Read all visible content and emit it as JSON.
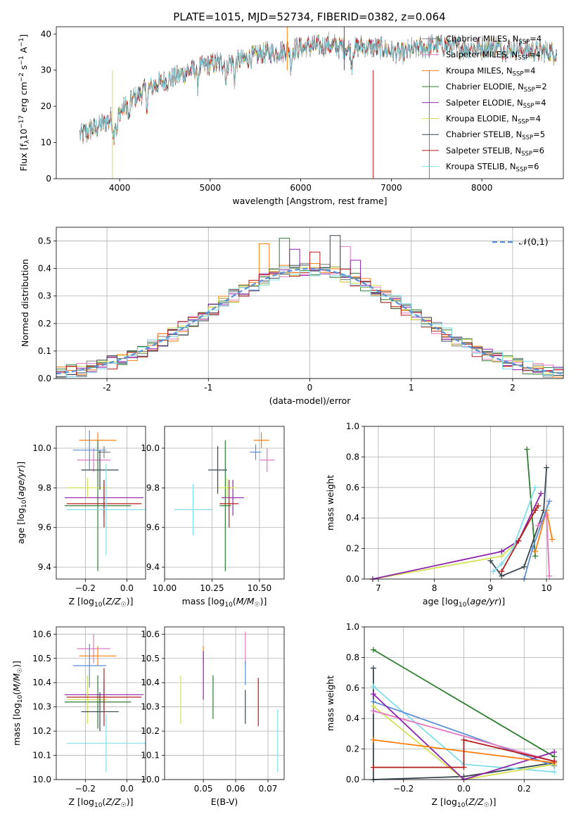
{
  "figure": {
    "title": "PLATE=1015, MJD=52734, FIBERID=0382, z=0.064"
  },
  "model_colors": [
    "#7f7f7f",
    "#e377c2",
    "#ff7f0e",
    "#2e7d32",
    "#8e24aa",
    "#d4e157",
    "#37474f",
    "#b71c1c",
    "#80deea"
  ],
  "legend": [
    {
      "prefix": "Chabrier MILES, N",
      "sub": "SSP",
      "suffix": "=4"
    },
    {
      "prefix": "Salpeter MILES, N",
      "sub": "SSP",
      "suffix": "=4"
    },
    {
      "prefix": "Kroupa MILES, N",
      "sub": "SSP",
      "suffix": "=4"
    },
    {
      "prefix": "Chabrier ELODIE, N",
      "sub": "SSP",
      "suffix": "=2"
    },
    {
      "prefix": "Salpeter ELODIE, N",
      "sub": "SSP",
      "suffix": "=4"
    },
    {
      "prefix": "Kroupa ELODIE, N",
      "sub": "SSP",
      "suffix": "=4"
    },
    {
      "prefix": "Chabrier STELIB, N",
      "sub": "SSP",
      "suffix": "=5"
    },
    {
      "prefix": "Salpeter STELIB, N",
      "sub": "SSP",
      "suffix": "=6"
    },
    {
      "prefix": "Kroupa STELIB, N",
      "sub": "SSP",
      "suffix": "=6"
    }
  ],
  "chart_data": [
    {
      "id": "spectrum",
      "type": "line",
      "xlabel": "wavelength [Angstrom, rest frame]",
      "ylabel": "Flux [f_λ10^-17 erg cm^-2 s^-1 A^-1]",
      "xlim": [
        3300,
        8900
      ],
      "ylim": [
        0,
        42
      ],
      "xticks": [
        4000,
        5000,
        6000,
        7000,
        8000
      ],
      "yticks": [
        0,
        10,
        20,
        30,
        40
      ],
      "continuum": {
        "x": [
          3550,
          3650,
          3800,
          3950,
          4100,
          4300,
          4500,
          4700,
          4900,
          5100,
          5300,
          5500,
          5700,
          5900,
          6100,
          6300,
          6500,
          6700,
          6900,
          7100,
          7300,
          7500,
          7700,
          7900,
          8100,
          8300,
          8500,
          8800
        ],
        "y": [
          12,
          13,
          15,
          17,
          21,
          25,
          27,
          29,
          31,
          32,
          32.5,
          34,
          35,
          36,
          36.5,
          37,
          36,
          36.5,
          36,
          34.5,
          36,
          37,
          36.5,
          36,
          36.5,
          36,
          35.5,
          35
        ]
      },
      "absorption_features": [
        3934,
        3969,
        4102,
        4304,
        4861,
        5175,
        5270,
        5893,
        6563
      ],
      "spikes": [
        {
          "x": 3920,
          "y": 0
        },
        {
          "x": 6800,
          "y": 0
        },
        {
          "x": 7420,
          "y": 0
        },
        {
          "x": 5850,
          "y": 42
        },
        {
          "x": 6480,
          "y": 42
        }
      ]
    },
    {
      "id": "residuals",
      "type": "histogram",
      "xlabel": "(data-model)/error",
      "ylabel": "Normed distribution",
      "xlim": [
        -2.5,
        2.5
      ],
      "ylim": [
        0,
        0.55
      ],
      "xticks": [
        -2,
        -1,
        0,
        1,
        2
      ],
      "yticks": [
        0,
        0.1,
        0.2,
        0.3,
        0.4,
        0.5
      ],
      "bins": {
        "start": -2.5,
        "width": 0.1,
        "count": 50
      },
      "reference_curve": {
        "label": "𝒩(0,1)",
        "mu": 0,
        "sigma": 1
      },
      "peak_overrides": [
        {
          "bin": 20,
          "series": 2,
          "value": 0.49
        },
        {
          "bin": 22,
          "series": 3,
          "value": 0.51
        },
        {
          "bin": 27,
          "series": 6,
          "value": 0.52
        },
        {
          "bin": 25,
          "series": 7,
          "value": 0.46
        },
        {
          "bin": 23,
          "series": 4,
          "value": 0.47
        },
        {
          "bin": 28,
          "series": 1,
          "value": 0.48
        },
        {
          "bin": 29,
          "series": 4,
          "value": 0.43
        }
      ]
    },
    {
      "id": "age-vs-z",
      "type": "errorbar",
      "xlabel": "Z [log10(Z/Z☉)]",
      "ylabel": "age [log10(age/yr)]",
      "xlim": [
        -0.34,
        0.09
      ],
      "ylim": [
        9.34,
        10.11
      ],
      "xticks": [
        -0.2,
        0.0
      ],
      "yticks": [
        9.4,
        9.6,
        9.8,
        10.0
      ],
      "points": [
        {
          "series": 0,
          "x": -0.11,
          "y": 9.98,
          "xerr": 0.03,
          "yerr": 0.03
        },
        {
          "series": 1,
          "x": -0.16,
          "y": 9.94,
          "xerr": 0.08,
          "yerr": 0.06
        },
        {
          "series": 2,
          "x": -0.14,
          "y": 10.04,
          "xerr": 0.09,
          "yerr": 0.04
        },
        {
          "series": 3,
          "x": -0.14,
          "y": 9.71,
          "xerr": 0.16,
          "yerr": 0.33
        },
        {
          "series": 4,
          "x": -0.11,
          "y": 9.75,
          "xerr": 0.19,
          "yerr": 0.09
        },
        {
          "series": 5,
          "x": -0.19,
          "y": 9.8,
          "xerr": 0.1,
          "yerr": 0.05
        },
        {
          "series": 6,
          "x": -0.13,
          "y": 9.89,
          "xerr": 0.09,
          "yerr": 0.1
        },
        {
          "series": 7,
          "x": -0.11,
          "y": 9.72,
          "xerr": 0.18,
          "yerr": 0.12
        },
        {
          "series": 8,
          "x": -0.1,
          "y": 9.69,
          "xerr": 0.19,
          "yerr": 0.23
        },
        {
          "series": 2,
          "x": -0.18,
          "y": 9.99,
          "xerr": 0.08,
          "yerr": 0.1,
          "color": "#5b8fd4"
        }
      ]
    },
    {
      "id": "age-vs-mass",
      "type": "errorbar",
      "xlabel": "mass [log10(M/M☉)]",
      "ylabel": "",
      "xlim": [
        10.0,
        10.63
      ],
      "ylim": [
        9.34,
        10.11
      ],
      "xticks": [
        10.0,
        10.25,
        10.5
      ],
      "yticks": [
        9.4,
        9.6,
        9.8,
        10.0
      ],
      "points": [
        {
          "series": 1,
          "x": 10.54,
          "y": 9.94,
          "xerr": 0.04,
          "yerr": 0.06
        },
        {
          "series": 2,
          "x": 10.51,
          "y": 10.04,
          "xerr": 0.04,
          "yerr": 0.04
        },
        {
          "series": 3,
          "x": 10.32,
          "y": 9.71,
          "xerr": 0.03,
          "yerr": 0.33
        },
        {
          "series": 4,
          "x": 10.36,
          "y": 9.75,
          "xerr": 0.06,
          "yerr": 0.09
        },
        {
          "series": 5,
          "x": 10.33,
          "y": 9.8,
          "xerr": 0.05,
          "yerr": 0.05
        },
        {
          "series": 6,
          "x": 10.28,
          "y": 9.89,
          "xerr": 0.05,
          "yerr": 0.12
        },
        {
          "series": 7,
          "x": 10.34,
          "y": 9.72,
          "xerr": 0.05,
          "yerr": 0.12
        },
        {
          "series": 8,
          "x": 10.15,
          "y": 9.69,
          "xerr": 0.1,
          "yerr": 0.13
        },
        {
          "series": 0,
          "x": 10.48,
          "y": 9.98,
          "xerr": 0.03,
          "yerr": 0.04,
          "color": "#5b8fd4"
        }
      ]
    },
    {
      "id": "weight-vs-age",
      "type": "line",
      "xlabel": "age [log10(age/yr)]",
      "ylabel": "mass weight",
      "xlim": [
        6.75,
        10.3
      ],
      "ylim": [
        0,
        1.0
      ],
      "xticks": [
        7,
        8,
        9,
        10
      ],
      "yticks": [
        0,
        0.2,
        0.4,
        0.6,
        0.8,
        1.0
      ],
      "series": [
        {
          "series": 3,
          "x": [
            9.8,
            9.65
          ],
          "y": [
            0.15,
            0.85
          ]
        },
        {
          "series": 6,
          "x": [
            9.0,
            9.2,
            9.6,
            9.95,
            10.0
          ],
          "y": [
            0.12,
            0.02,
            0.08,
            0.45,
            0.73
          ]
        },
        {
          "series": 5,
          "x": [
            6.9,
            9.2,
            9.5,
            9.85
          ],
          "y": [
            0.0,
            0.15,
            0.25,
            0.48
          ]
        },
        {
          "series": 4,
          "x": [
            9.2,
            9.5,
            9.9
          ],
          "y": [
            0.18,
            0.25,
            0.56
          ]
        },
        {
          "series": 8,
          "x": [
            9.05,
            9.2,
            9.4,
            9.8
          ],
          "y": [
            0.05,
            0.1,
            0.2,
            0.6
          ]
        },
        {
          "series": 7,
          "x": [
            9.2,
            9.5,
            9.8,
            9.85
          ],
          "y": [
            0.05,
            0.25,
            0.45,
            0.48
          ]
        },
        {
          "series": 2,
          "x": [
            9.8,
            10.0,
            10.1
          ],
          "y": [
            0.18,
            0.45,
            0.26
          ]
        },
        {
          "series": 1,
          "x": [
            9.85,
            10.0,
            10.05
          ],
          "y": [
            0.35,
            0.42,
            0.02
          ]
        },
        {
          "series": 0,
          "x": [
            9.6,
            9.75,
            10.05
          ],
          "y": [
            0.0,
            0.2,
            0.51
          ],
          "color": "#5b8fd4"
        },
        {
          "series": 4,
          "x": [
            6.9,
            9.2
          ],
          "y": [
            0.0,
            0.18
          ]
        }
      ]
    },
    {
      "id": "mass-vs-z",
      "type": "errorbar",
      "xlabel": "Z [log10(Z/Z☉)]",
      "ylabel": "mass [log10(M/M☉)]",
      "xlim": [
        -0.34,
        0.09
      ],
      "ylim": [
        10.0,
        10.63
      ],
      "xticks": [
        -0.2,
        0.0
      ],
      "yticks": [
        10.0,
        10.1,
        10.2,
        10.3,
        10.4,
        10.5,
        10.6
      ],
      "points": [
        {
          "series": 1,
          "x": -0.16,
          "y": 10.54,
          "xerr": 0.08,
          "yerr": 0.06
        },
        {
          "series": 2,
          "x": -0.14,
          "y": 10.51,
          "xerr": 0.09,
          "yerr": 0.04
        },
        {
          "series": 3,
          "x": -0.14,
          "y": 10.32,
          "xerr": 0.16,
          "yerr": 0.11
        },
        {
          "series": 4,
          "x": -0.11,
          "y": 10.35,
          "xerr": 0.19,
          "yerr": 0.06
        },
        {
          "series": 5,
          "x": -0.19,
          "y": 10.33,
          "xerr": 0.1,
          "yerr": 0.1
        },
        {
          "series": 6,
          "x": -0.13,
          "y": 10.28,
          "xerr": 0.09,
          "yerr": 0.08
        },
        {
          "series": 7,
          "x": -0.11,
          "y": 10.34,
          "xerr": 0.18,
          "yerr": 0.12
        },
        {
          "series": 8,
          "x": -0.1,
          "y": 10.15,
          "xerr": 0.19,
          "yerr": 0.12
        },
        {
          "series": 0,
          "x": -0.18,
          "y": 10.47,
          "xerr": 0.08,
          "yerr": 0.09,
          "color": "#5b8fd4"
        }
      ]
    },
    {
      "id": "mass-vs-ebv",
      "type": "errorbar",
      "xlabel": "E(B-V)",
      "ylabel": "",
      "xlim": [
        0.038,
        0.075
      ],
      "ylim": [
        10.0,
        10.63
      ],
      "xticks": [
        0.05,
        0.06,
        0.07
      ],
      "yticks": [
        10.0,
        10.1,
        10.2,
        10.3,
        10.4,
        10.5,
        10.6
      ],
      "points": [
        {
          "series": 5,
          "x": 0.043,
          "y": 10.33,
          "xerr": 0,
          "yerr": 0.1
        },
        {
          "series": 2,
          "x": 0.05,
          "y": 10.51,
          "xerr": 0,
          "yerr": 0.04
        },
        {
          "series": 4,
          "x": 0.05,
          "y": 10.43,
          "xerr": 0,
          "yerr": 0.1
        },
        {
          "series": 3,
          "x": 0.053,
          "y": 10.34,
          "xerr": 0,
          "yerr": 0.09
        },
        {
          "series": 1,
          "x": 0.063,
          "y": 10.54,
          "xerr": 0,
          "yerr": 0.07
        },
        {
          "series": 0,
          "x": 0.063,
          "y": 10.44,
          "xerr": 0,
          "yerr": 0.05,
          "color": "#5b8fd4"
        },
        {
          "series": 6,
          "x": 0.063,
          "y": 10.3,
          "xerr": 0,
          "yerr": 0.07
        },
        {
          "series": 7,
          "x": 0.067,
          "y": 10.32,
          "xerr": 0,
          "yerr": 0.1
        },
        {
          "series": 8,
          "x": 0.073,
          "y": 10.16,
          "xerr": 0,
          "yerr": 0.13
        }
      ]
    },
    {
      "id": "weight-vs-z",
      "type": "line",
      "xlabel": "Z [log10(Z/Z☉)]",
      "ylabel": "mass weight",
      "xlim": [
        -0.33,
        0.33
      ],
      "ylim": [
        0,
        1.0
      ],
      "xticks": [
        -0.2,
        0.0,
        0.2
      ],
      "yticks": [
        0,
        0.2,
        0.4,
        0.6,
        0.8,
        1.0
      ],
      "series": [
        {
          "series": 3,
          "x": [
            -0.3,
            0.3
          ],
          "y": [
            0.85,
            0.15
          ]
        },
        {
          "series": 6,
          "x": [
            -0.3,
            -0.3,
            0.0,
            0.3
          ],
          "y": [
            0.73,
            0.0,
            0.02,
            0.11
          ]
        },
        {
          "series": 8,
          "x": [
            -0.3,
            0.0,
            0.3
          ],
          "y": [
            0.61,
            0.1,
            0.05
          ]
        },
        {
          "series": 0,
          "x": [
            -0.3,
            0.3
          ],
          "y": [
            0.51,
            0.09
          ],
          "color": "#5b8fd4"
        },
        {
          "series": 5,
          "x": [
            -0.3,
            0.0,
            0.3
          ],
          "y": [
            0.48,
            0.0,
            0.1
          ]
        },
        {
          "series": 1,
          "x": [
            -0.3,
            0.3
          ],
          "y": [
            0.45,
            0.12
          ]
        },
        {
          "series": 4,
          "x": [
            -0.3,
            0.0,
            0.3
          ],
          "y": [
            0.56,
            0.0,
            0.18
          ]
        },
        {
          "series": 2,
          "x": [
            -0.3,
            0.3
          ],
          "y": [
            0.26,
            0.11
          ]
        },
        {
          "series": 7,
          "x": [
            -0.3,
            0.0,
            0.0,
            0.3
          ],
          "y": [
            0.08,
            0.08,
            0.26,
            0.12
          ]
        }
      ]
    }
  ]
}
